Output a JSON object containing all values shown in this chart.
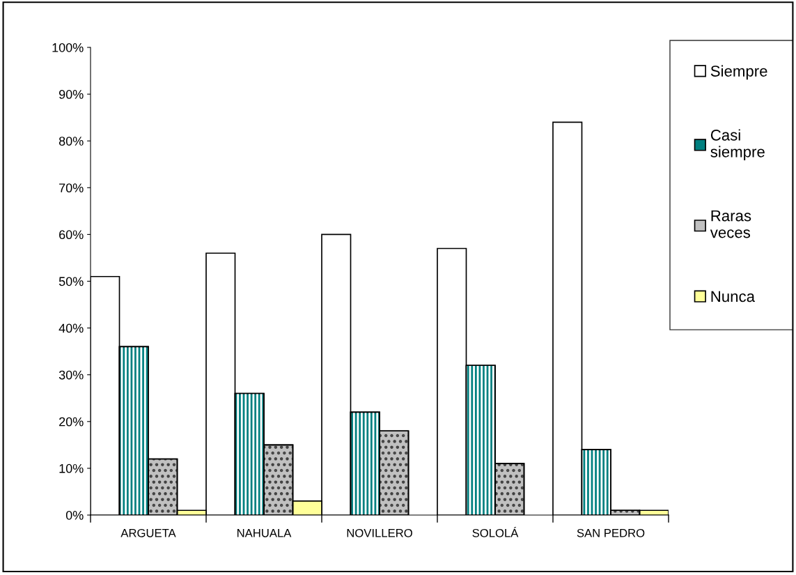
{
  "chart_data": {
    "type": "bar",
    "categories": [
      "ARGUETA",
      "NAHUALA",
      "NOVILLERO",
      "SOLOLÁ",
      "SAN PEDRO"
    ],
    "series": [
      {
        "name": "Siempre",
        "color": "#ffffff",
        "values": [
          51,
          56,
          60,
          57,
          84
        ]
      },
      {
        "name": "Casi siempre",
        "color": "#008080",
        "values": [
          36,
          26,
          22,
          32,
          14
        ]
      },
      {
        "name": "Raras veces",
        "color": "#c0c0c0",
        "values": [
          12,
          15,
          18,
          11,
          1
        ]
      },
      {
        "name": "Nunca",
        "color": "#ffff99",
        "values": [
          1,
          3,
          0,
          0,
          1
        ]
      }
    ],
    "ylim": [
      0,
      100
    ],
    "yticks": [
      {
        "value": 0,
        "label": "0%"
      },
      {
        "value": 10,
        "label": "10%"
      },
      {
        "value": 20,
        "label": "20%"
      },
      {
        "value": 30,
        "label": "30%"
      },
      {
        "value": 40,
        "label": "40%"
      },
      {
        "value": 50,
        "label": "50%"
      },
      {
        "value": 60,
        "label": "60%"
      },
      {
        "value": 70,
        "label": "70%"
      },
      {
        "value": 80,
        "label": "80%"
      },
      {
        "value": 90,
        "label": "90%"
      },
      {
        "value": 100,
        "label": "100%"
      }
    ],
    "grid": false,
    "legend": "right"
  }
}
